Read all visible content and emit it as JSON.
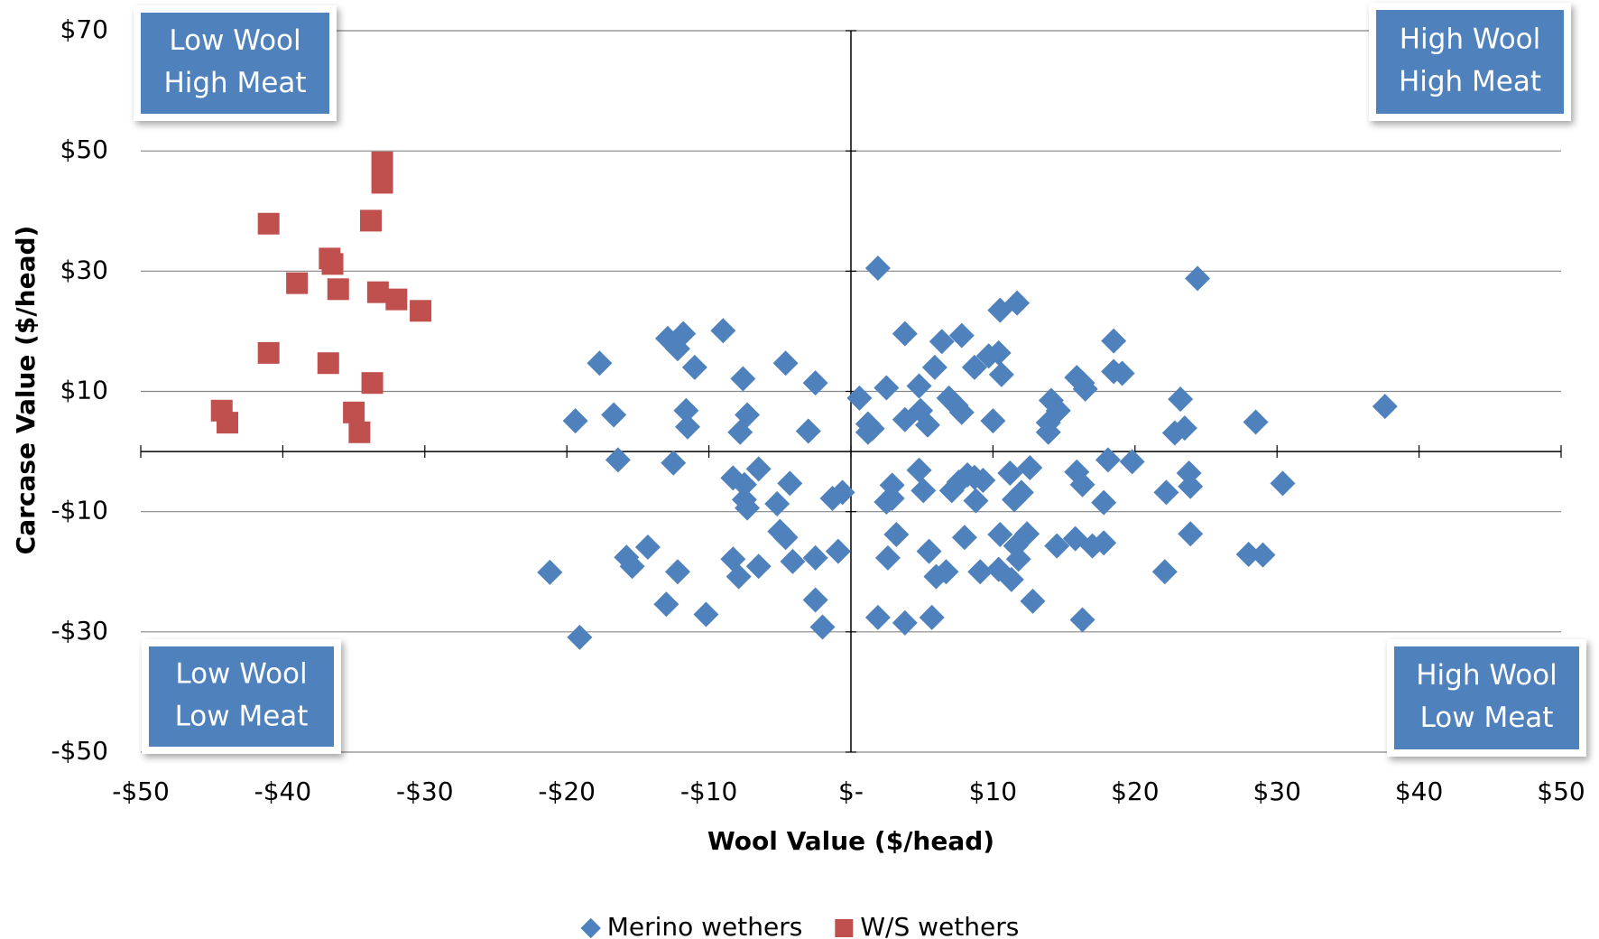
{
  "chart_data": {
    "type": "scatter",
    "x_label": "Wool Value ($/head)",
    "y_label": "Carcase Value ($/head)",
    "xlim": [
      -50,
      50
    ],
    "ylim": [
      -50,
      70
    ],
    "xticks": [
      {
        "value": -50,
        "label": "-$50"
      },
      {
        "value": -40,
        "label": "-$40"
      },
      {
        "value": -30,
        "label": "-$30"
      },
      {
        "value": -20,
        "label": "-$20"
      },
      {
        "value": -10,
        "label": "-$10"
      },
      {
        "value": 0,
        "label": "$-"
      },
      {
        "value": 10,
        "label": "$10"
      },
      {
        "value": 20,
        "label": "$20"
      },
      {
        "value": 30,
        "label": "$30"
      },
      {
        "value": 40,
        "label": "$40"
      },
      {
        "value": 50,
        "label": "$50"
      }
    ],
    "yticks": [
      {
        "value": -50,
        "label": "-$50"
      },
      {
        "value": -30,
        "label": "-$30"
      },
      {
        "value": -10,
        "label": "-$10"
      },
      {
        "value": 10,
        "label": "$10"
      },
      {
        "value": 30,
        "label": "$30"
      },
      {
        "value": 50,
        "label": "$50"
      },
      {
        "value": 70,
        "label": "$70"
      }
    ],
    "grid": true,
    "legend": "bottom",
    "annotations": [
      [
        "Low Wool",
        "High Meat"
      ],
      [
        "High Wool",
        "High Meat"
      ],
      [
        "Low Wool",
        "Low Meat"
      ],
      [
        "High Wool",
        "Low Meat"
      ]
    ],
    "series": [
      {
        "name": "Merino wethers",
        "color": "#4F81BD",
        "marker": "diamond",
        "x": [
          1.9,
          24.4,
          10.5,
          11.7,
          3.8,
          6.4,
          7.8,
          18.5,
          -9.0,
          -12.9,
          -11.8,
          -12.2,
          -11.0,
          -17.7,
          -4.6,
          -7.6,
          -2.5,
          9.7,
          10.4,
          5.9,
          8.7,
          10.6,
          15.9,
          16.3,
          16.5,
          18.5,
          19.1,
          2.5,
          4.8,
          0.6,
          6.9,
          7.4,
          7.8,
          14.1,
          14.6,
          23.2,
          37.6,
          -19.4,
          -16.7,
          -11.6,
          -11.5,
          -7.3,
          -7.8,
          -3.0,
          1.2,
          1.5,
          1.2,
          3.8,
          5.4,
          4.9,
          10.0,
          13.9,
          13.9,
          22.8,
          23.5,
          28.5,
          -16.4,
          -12.5,
          18.1,
          19.8,
          -6.5,
          -8.3,
          -7.5,
          -7.5,
          -7.3,
          -4.3,
          -5.2,
          -1.3,
          -0.6,
          4.8,
          2.9,
          2.5,
          2.9,
          5.1,
          7.1,
          8.2,
          7.6,
          8.7,
          9.3,
          8.8,
          11.2,
          11.5,
          12.0,
          12.6,
          15.9,
          16.3,
          17.8,
          22.2,
          23.8,
          23.9,
          30.4,
          -5.0,
          -4.6,
          -14.3,
          -15.8,
          -15.4,
          -21.2,
          -12.2,
          -8.3,
          -7.9,
          -6.5,
          -4.1,
          -2.5,
          -0.9,
          3.2,
          2.6,
          5.5,
          6.0,
          6.7,
          8.0,
          9.1,
          10.5,
          10.4,
          11.6,
          11.8,
          12.4,
          11.3,
          14.5,
          15.8,
          17.0,
          17.8,
          22.1,
          23.9,
          28.0,
          29.0,
          -13.0,
          -10.2,
          -19.1,
          -2.5,
          -2.0,
          1.9,
          3.8,
          5.7,
          12.8,
          16.3
        ],
        "values": [
          30.5,
          28.8,
          23.5,
          24.7,
          19.6,
          18.3,
          19.3,
          18.4,
          20.1,
          18.8,
          19.6,
          17.1,
          14.0,
          14.7,
          14.7,
          12.1,
          11.4,
          15.9,
          16.4,
          14.0,
          14.0,
          12.8,
          12.3,
          11.4,
          10.4,
          13.3,
          13.0,
          10.6,
          10.9,
          8.9,
          8.9,
          7.7,
          6.5,
          8.5,
          6.8,
          8.7,
          7.5,
          5.1,
          6.1,
          6.8,
          4.1,
          6.1,
          3.2,
          3.4,
          4.6,
          3.8,
          3.2,
          5.3,
          4.4,
          6.8,
          5.1,
          4.8,
          3.2,
          3.1,
          3.9,
          4.9,
          -1.4,
          -1.9,
          -1.4,
          -1.7,
          -2.9,
          -4.4,
          -5.5,
          -8.0,
          -9.4,
          -5.3,
          -8.7,
          -7.8,
          -6.8,
          -3.1,
          -5.6,
          -8.4,
          -7.8,
          -6.5,
          -6.5,
          -3.9,
          -5.1,
          -4.3,
          -4.8,
          -8.2,
          -3.6,
          -8.0,
          -6.8,
          -2.7,
          -3.4,
          -5.5,
          -8.5,
          -6.8,
          -3.6,
          -5.8,
          -5.3,
          -13.3,
          -14.3,
          -15.9,
          -17.6,
          -19.1,
          -20.1,
          -20.0,
          -17.9,
          -20.8,
          -19.1,
          -18.3,
          -17.7,
          -16.6,
          -13.8,
          -17.7,
          -16.6,
          -20.8,
          -20.0,
          -14.3,
          -20.0,
          -13.8,
          -19.6,
          -15.7,
          -17.9,
          -13.7,
          -21.3,
          -15.7,
          -14.5,
          -15.7,
          -15.2,
          -20.0,
          -13.7,
          -17.1,
          -17.2,
          -25.4,
          -27.1,
          -30.9,
          -24.7,
          -29.2,
          -27.6,
          -28.5,
          -27.6,
          -24.9,
          -28.0
        ]
      },
      {
        "name": "W/S wethers",
        "color": "#C0504D",
        "marker": "square",
        "x": [
          -41.0,
          -33.0,
          -33.0,
          -33.8,
          -36.7,
          -36.5,
          -39.0,
          -36.1,
          -33.3,
          -32.0,
          -30.3,
          -41.0,
          -36.8,
          -33.7,
          -44.3,
          -35.0,
          -43.9,
          -34.6
        ],
        "values": [
          37.9,
          48.1,
          44.7,
          38.4,
          32.1,
          31.2,
          28.0,
          27.0,
          26.5,
          25.3,
          23.4,
          16.4,
          14.7,
          11.4,
          6.8,
          6.5,
          4.8,
          3.2
        ]
      }
    ]
  }
}
